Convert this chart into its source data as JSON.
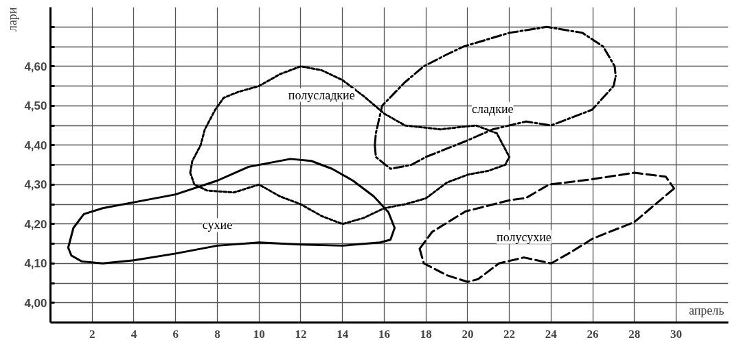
{
  "chart_data": {
    "type": "line",
    "xlabel": "апрель",
    "ylabel": "лари",
    "xlim": [
      0,
      32.5
    ],
    "ylim": [
      3.95,
      4.75
    ],
    "xticks": [
      2,
      4,
      6,
      8,
      10,
      12,
      14,
      16,
      18,
      20,
      22,
      24,
      26,
      28,
      30
    ],
    "yticks": [
      {
        "value": 4.0,
        "label": "4,00"
      },
      {
        "value": 4.05,
        "label": null
      },
      {
        "value": 4.1,
        "label": "4,10"
      },
      {
        "value": 4.15,
        "label": null
      },
      {
        "value": 4.2,
        "label": "4,20"
      },
      {
        "value": 4.25,
        "label": null
      },
      {
        "value": 4.3,
        "label": "4,30"
      },
      {
        "value": 4.35,
        "label": null
      },
      {
        "value": 4.4,
        "label": "4,40"
      },
      {
        "value": 4.45,
        "label": null
      },
      {
        "value": 4.5,
        "label": "4,50"
      },
      {
        "value": 4.55,
        "label": null
      },
      {
        "value": 4.6,
        "label": "4,60"
      },
      {
        "value": 4.65,
        "label": null
      },
      {
        "value": 4.7,
        "label": null
      }
    ],
    "grid": true,
    "marker": "none",
    "series": [
      {
        "name": "сухие",
        "color": "#000000",
        "line_style": "solid",
        "x": [
          0.85,
          1.1,
          1.6,
          2.5,
          4,
          6,
          8,
          9.5,
          10.5,
          11.5,
          12.5,
          13.5,
          14.5,
          15.5,
          16.2,
          16.5,
          null,
          0.85,
          1,
          1.5,
          2.5,
          4,
          6,
          8,
          10,
          12,
          14,
          15.8,
          16.3,
          16.5
        ],
        "values": [
          4.14,
          4.19,
          4.225,
          4.24,
          4.255,
          4.275,
          4.31,
          4.345,
          4.355,
          4.365,
          4.36,
          4.34,
          4.31,
          4.27,
          4.23,
          4.19,
          null,
          4.14,
          4.12,
          4.105,
          4.1,
          4.108,
          4.125,
          4.145,
          4.153,
          4.148,
          4.145,
          4.153,
          4.16,
          4.19
        ]
      },
      {
        "name": "полусладкие",
        "color": "#000000",
        "line_style": "dotted",
        "x": [
          6.7,
          6.9,
          7.5,
          8.8,
          9.4,
          10,
          11,
          12,
          13,
          14,
          15,
          16,
          17,
          18,
          19,
          20,
          21,
          21.8,
          22,
          null,
          6.7,
          6.8,
          7.2,
          7.4,
          7.9,
          8.3,
          9,
          10,
          11,
          12,
          13,
          14,
          15,
          16,
          17,
          18.7,
          19.5,
          20.4,
          21.4,
          22
        ],
        "values": [
          4.33,
          4.3,
          4.285,
          4.28,
          4.29,
          4.3,
          4.27,
          4.25,
          4.22,
          4.2,
          4.215,
          4.24,
          4.25,
          4.265,
          4.305,
          4.325,
          4.335,
          4.35,
          4.37,
          null,
          4.33,
          4.36,
          4.4,
          4.44,
          4.49,
          4.52,
          4.535,
          4.55,
          4.58,
          4.6,
          4.59,
          4.565,
          4.525,
          4.48,
          4.45,
          4.44,
          4.445,
          4.45,
          4.43,
          4.37
        ]
      },
      {
        "name": "сладкие",
        "color": "#000000",
        "line_style": "dashdot",
        "x": [
          15.55,
          15.6,
          15.9,
          17,
          17.9,
          19,
          19.8,
          22,
          23.8,
          25.5,
          26.5,
          27.05,
          27.1,
          null,
          15.55,
          15.6,
          16.3,
          17.3,
          18,
          19.9,
          21.2,
          22.8,
          24,
          25.97,
          27,
          27.1
        ],
        "values": [
          4.4,
          4.43,
          4.5,
          4.56,
          4.6,
          4.63,
          4.65,
          4.685,
          4.7,
          4.685,
          4.65,
          4.6,
          4.575,
          null,
          4.4,
          4.37,
          4.34,
          4.35,
          4.37,
          4.41,
          4.44,
          4.46,
          4.45,
          4.49,
          4.55,
          4.575
        ]
      },
      {
        "name": "полусухие",
        "color": "#000000",
        "line_style": "dashed",
        "x": [
          17.7,
          18.3,
          19.9,
          22,
          22.8,
          23.9,
          25.9,
          28,
          29.5,
          29.9,
          null,
          17.7,
          17.9,
          19,
          20,
          20.5,
          21.5,
          22.7,
          24,
          25,
          26,
          28,
          29,
          29.9
        ],
        "values": [
          4.137,
          4.18,
          4.232,
          4.26,
          4.266,
          4.3,
          4.313,
          4.33,
          4.32,
          4.29,
          null,
          4.137,
          4.1,
          4.07,
          4.053,
          4.06,
          4.1,
          4.115,
          4.1,
          4.13,
          4.163,
          4.205,
          4.25,
          4.29
        ]
      }
    ]
  }
}
